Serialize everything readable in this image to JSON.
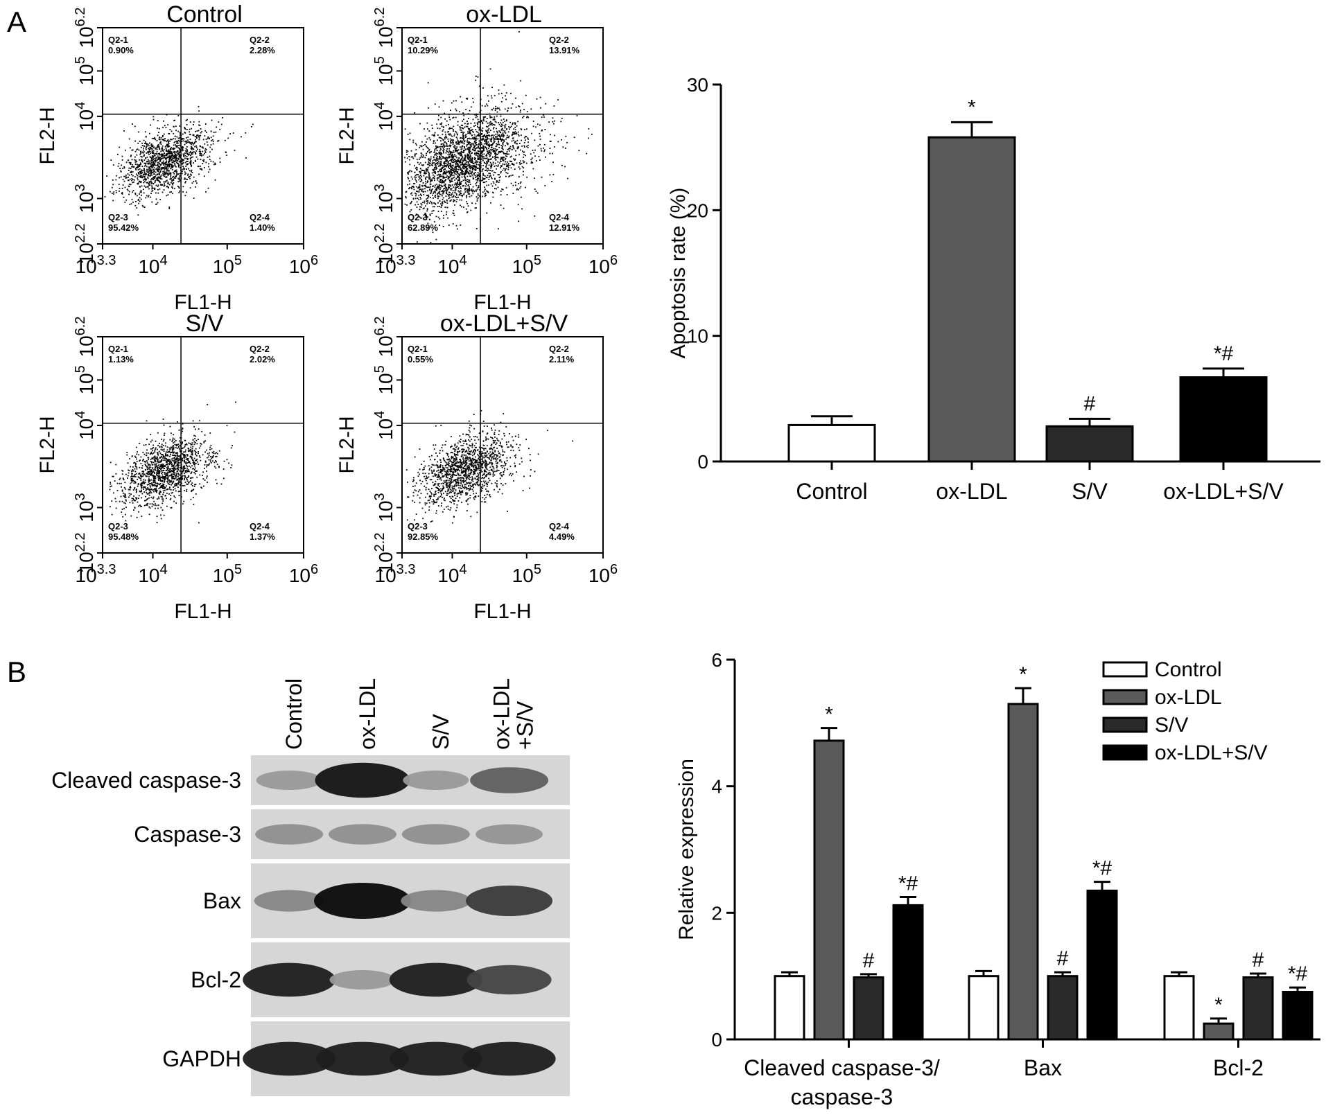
{
  "panel_a": {
    "label": "A",
    "flow_plots": [
      {
        "title": "Control",
        "quadrants": [
          {
            "name": "Q2-1",
            "pct": "0.90%"
          },
          {
            "name": "Q2-2",
            "pct": "2.28%"
          },
          {
            "name": "Q2-3",
            "pct": "95.42%"
          },
          {
            "name": "Q2-4",
            "pct": "1.40%"
          }
        ],
        "spread": 0.35
      },
      {
        "title": "ox-LDL",
        "quadrants": [
          {
            "name": "Q2-1",
            "pct": "10.29%"
          },
          {
            "name": "Q2-2",
            "pct": "13.91%"
          },
          {
            "name": "Q2-3",
            "pct": "62.89%"
          },
          {
            "name": "Q2-4",
            "pct": "12.91%"
          }
        ],
        "spread": 1.0
      },
      {
        "title": "S/V",
        "quadrants": [
          {
            "name": "Q2-1",
            "pct": "1.13%"
          },
          {
            "name": "Q2-2",
            "pct": "2.02%"
          },
          {
            "name": "Q2-3",
            "pct": "95.48%"
          },
          {
            "name": "Q2-4",
            "pct": "1.37%"
          }
        ],
        "spread": 0.35
      },
      {
        "title": "ox-LDL+S/V",
        "quadrants": [
          {
            "name": "Q2-1",
            "pct": "0.55%"
          },
          {
            "name": "Q2-2",
            "pct": "2.11%"
          },
          {
            "name": "Q2-3",
            "pct": "92.85%"
          },
          {
            "name": "Q2-4",
            "pct": "4.49%"
          }
        ],
        "spread": 0.4
      }
    ],
    "flow_xlabel": "FL1-H",
    "flow_ylabel": "FL2-H",
    "flow_xticks": [
      {
        "base": "10",
        "exp": "3.3"
      },
      {
        "base": "10",
        "exp": "4"
      },
      {
        "base": "10",
        "exp": "5"
      },
      {
        "base": "10",
        "exp": "6"
      }
    ],
    "flow_yticks": [
      {
        "base": "10",
        "exp": "2.2"
      },
      {
        "base": "10",
        "exp": "3"
      },
      {
        "base": "10",
        "exp": "4"
      },
      {
        "base": "10",
        "exp": "5"
      },
      {
        "base": "10",
        "exp": "6.2"
      }
    ]
  },
  "panel_b": {
    "label": "B",
    "lanes": [
      "Control",
      "ox-LDL",
      "S/V",
      "ox-LDL\n+S/V"
    ],
    "blots": [
      {
        "name": "Cleaved caspase-3",
        "intensity": [
          0.25,
          0.95,
          0.25,
          0.55
        ]
      },
      {
        "name": "Caspase-3",
        "intensity": [
          0.3,
          0.3,
          0.3,
          0.28
        ]
      },
      {
        "name": "Bax",
        "intensity": [
          0.35,
          1.0,
          0.35,
          0.75
        ]
      },
      {
        "name": "Bcl-2",
        "intensity": [
          0.9,
          0.25,
          0.9,
          0.7
        ]
      },
      {
        "name": "GAPDH",
        "intensity": [
          0.9,
          0.9,
          0.9,
          0.9
        ]
      }
    ]
  },
  "chart_data": [
    {
      "type": "bar",
      "categories": [
        "Control",
        "ox-LDL",
        "S/V",
        "ox-LDL+S/V"
      ],
      "values": [
        2.9,
        25.8,
        2.8,
        6.7
      ],
      "errors": [
        0.7,
        1.2,
        0.6,
        0.7
      ],
      "significance": [
        "",
        "*",
        "#",
        "*#"
      ],
      "ylabel": "Apoptosis rate (%)",
      "ylim": [
        0,
        30
      ],
      "yticks": [
        0,
        10,
        20,
        30
      ],
      "colors": [
        "#ffffff",
        "#5a5a5a",
        "#2a2a2a",
        "#000000"
      ]
    },
    {
      "type": "bar",
      "categories": [
        "Cleaved caspase-3/\ncaspase-3",
        "Bax",
        "Bcl-2"
      ],
      "series": [
        {
          "name": "Control",
          "values": [
            1.0,
            1.0,
            1.0
          ],
          "errors": [
            0.06,
            0.08,
            0.06
          ],
          "sig": [
            "",
            "",
            ""
          ],
          "color": "#ffffff"
        },
        {
          "name": "ox-LDL",
          "values": [
            4.72,
            5.3,
            0.25
          ],
          "errors": [
            0.2,
            0.25,
            0.08
          ],
          "sig": [
            "*",
            "*",
            "*"
          ],
          "color": "#5a5a5a"
        },
        {
          "name": "S/V",
          "values": [
            0.98,
            1.0,
            0.98
          ],
          "errors": [
            0.05,
            0.06,
            0.06
          ],
          "sig": [
            "#",
            "#",
            "#"
          ],
          "color": "#2a2a2a"
        },
        {
          "name": "ox-LDL+S/V",
          "values": [
            2.12,
            2.35,
            0.75
          ],
          "errors": [
            0.13,
            0.14,
            0.07
          ],
          "sig": [
            "*#",
            "*#",
            "*#"
          ],
          "color": "#000000"
        }
      ],
      "ylabel": "Relative expression",
      "ylim": [
        0,
        6
      ],
      "yticks": [
        0,
        2,
        4,
        6
      ]
    }
  ]
}
